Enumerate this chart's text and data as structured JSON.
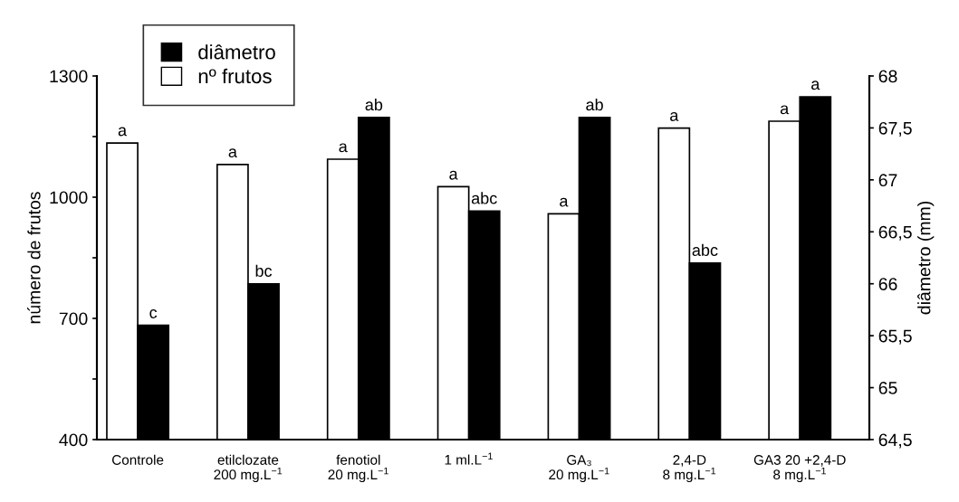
{
  "chart_data": {
    "type": "bar",
    "ylabel": "número de frutos",
    "y2label": "diâmetro (mm)",
    "categories": [
      "Controle",
      "etilclozate\n200 mg.L$^{−1}$",
      "fenotiol\n20 mg.L$^{−1}$",
      "1 ml.L$^{−1}$",
      "GA₃\n20 mg.L$^{−1}$",
      "2,4-D\n8 mg.L$^{−1}$",
      "GA3 20 +2,4-D\n8 mg.L$^{−1}$"
    ],
    "series": [
      {
        "name": "nº frutos",
        "color": "#ffffff",
        "values": [
          1134,
          1081,
          1094,
          1026,
          959,
          1171,
          1188
        ],
        "value_labels": [
          "a",
          "a",
          "a",
          "a",
          "a",
          "a",
          "a"
        ]
      },
      {
        "name": "diâmetro",
        "color": "#000000",
        "axis": "y2",
        "values": [
          65.6,
          66.0,
          67.6,
          66.7,
          67.6,
          66.2,
          67.8
        ],
        "value_labels": [
          "c",
          "bc",
          "ab",
          "abc",
          "ab",
          "abc",
          "a"
        ]
      }
    ],
    "ylim": [
      400,
      1300
    ],
    "yticks": [
      400,
      {
        "value": 550,
        "label": null
      },
      700,
      {
        "value": 850,
        "label": null
      },
      1000,
      {
        "value": 1150,
        "label": null
      },
      1300
    ],
    "y2lim": [
      64.5,
      68
    ],
    "y2ticks": [
      {
        "value": 64.5,
        "label": "64,5"
      },
      65,
      {
        "value": 65.5,
        "label": "65,5"
      },
      66,
      {
        "value": 66.5,
        "label": "66,5"
      },
      67,
      {
        "value": 67.5,
        "label": "67,5"
      },
      68
    ],
    "grid": false,
    "legend": "top left"
  }
}
